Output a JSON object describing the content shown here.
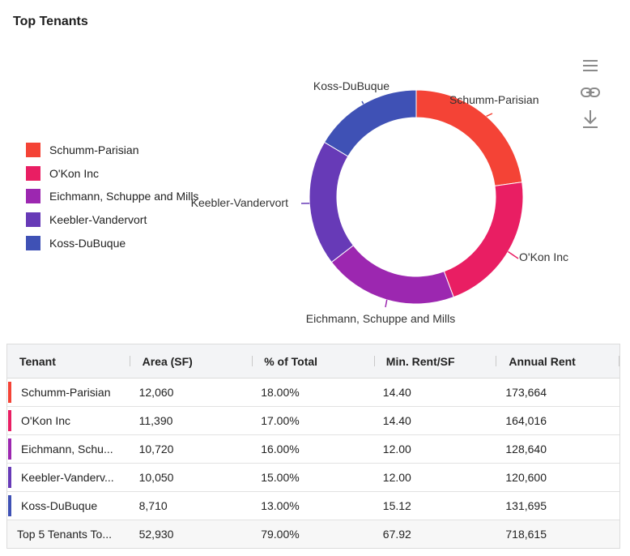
{
  "header": {
    "title": "Top Tenants"
  },
  "toolbar": {
    "icons": [
      "menu-icon",
      "link-icon",
      "download-icon"
    ]
  },
  "chart_data": {
    "type": "pie",
    "title": "Top Tenants",
    "donut": true,
    "categories": [
      "Schumm-Parisian",
      "O'Kon Inc",
      "Eichmann, Schuppe and Mills",
      "Keebler-Vandervort",
      "Koss-DuBuque"
    ],
    "values": [
      18,
      17,
      16,
      15,
      13
    ],
    "colors": [
      "#f44336",
      "#e91e63",
      "#9c27b0",
      "#673ab7",
      "#3f51b5"
    ],
    "legend_position": "left",
    "data_labels": [
      "Schumm-Parisian",
      "O'Kon Inc",
      "Eichmann, Schuppe and Mills",
      "Keebler-Vandervort",
      "Koss-DuBuque"
    ]
  },
  "table": {
    "columns": [
      "Tenant",
      "Area (SF)",
      "% of Total",
      "Min. Rent/SF",
      "Annual Rent"
    ],
    "rows": [
      {
        "tenant": "Schumm-Parisian",
        "area": "12,060",
        "pct": "18.00%",
        "min_rent": "14.40",
        "annual": "173,664",
        "color": "#f44336"
      },
      {
        "tenant": "O'Kon Inc",
        "area": "11,390",
        "pct": "17.00%",
        "min_rent": "14.40",
        "annual": "164,016",
        "color": "#e91e63"
      },
      {
        "tenant": "Eichmann, Schu...",
        "area": "10,720",
        "pct": "16.00%",
        "min_rent": "12.00",
        "annual": "128,640",
        "color": "#9c27b0"
      },
      {
        "tenant": "Keebler-Vanderv...",
        "area": "10,050",
        "pct": "15.00%",
        "min_rent": "12.00",
        "annual": "120,600",
        "color": "#673ab7"
      },
      {
        "tenant": "Koss-DuBuque",
        "area": "8,710",
        "pct": "13.00%",
        "min_rent": "15.12",
        "annual": "131,695",
        "color": "#3f51b5"
      }
    ],
    "total": {
      "tenant": "Top 5 Tenants To...",
      "area": "52,930",
      "pct": "79.00%",
      "min_rent": "67.92",
      "annual": "718,615"
    }
  }
}
